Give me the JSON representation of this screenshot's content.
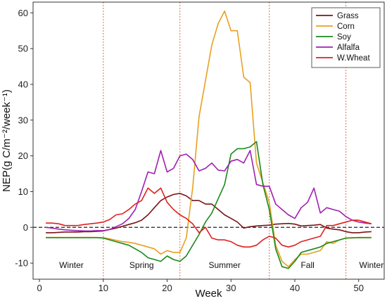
{
  "chart_data": {
    "type": "line",
    "xlabel": "Week",
    "ylabel": "NEP(g C/m⁻²/week⁻¹)",
    "xlim": [
      -1,
      54
    ],
    "ylim": [
      -14.5,
      63
    ],
    "xticks": [
      0,
      10,
      20,
      30,
      40,
      50
    ],
    "yticks": [
      -10,
      0,
      10,
      20,
      30,
      40,
      50,
      60
    ],
    "grid": false,
    "legend_position": "top-right",
    "zero_line": {
      "y": 0,
      "style": "dashed",
      "color": "#222222"
    },
    "season_dividers": {
      "x": [
        10,
        22,
        36,
        48
      ],
      "style": "dotted",
      "color": "#e8846a"
    },
    "season_labels": [
      {
        "text": "Winter",
        "x": 5
      },
      {
        "text": "Spring",
        "x": 16
      },
      {
        "text": "Summer",
        "x": 29
      },
      {
        "text": "Fall",
        "x": 42
      },
      {
        "text": "Winter",
        "x": 52
      }
    ],
    "season_label_y": -10.6,
    "x": [
      1,
      2,
      3,
      4,
      5,
      6,
      7,
      8,
      9,
      10,
      11,
      12,
      13,
      14,
      15,
      16,
      17,
      18,
      19,
      20,
      21,
      22,
      23,
      24,
      25,
      26,
      27,
      28,
      29,
      30,
      31,
      32,
      33,
      34,
      35,
      36,
      37,
      38,
      39,
      40,
      41,
      42,
      43,
      44,
      45,
      46,
      47,
      48,
      49,
      50,
      51,
      52
    ],
    "series": [
      {
        "name": "Grass",
        "color": "#7a1515",
        "values": [
          -1.5,
          -1.5,
          -1.4,
          -1.3,
          -1.3,
          -1.3,
          -1.2,
          -1.2,
          -1.1,
          -1.0,
          -0.6,
          -0.2,
          0.3,
          0.8,
          1.3,
          2.0,
          3.5,
          5.5,
          7.5,
          8.5,
          9.2,
          9.5,
          8.8,
          7.5,
          7.5,
          6.5,
          6.5,
          5.0,
          3.5,
          2.5,
          1.5,
          -0.2,
          0.2,
          0.4,
          0.5,
          0.6,
          0.9,
          1.0,
          1.1,
          0.9,
          0.4,
          0.5,
          0.6,
          0.8,
          -0.2,
          -0.5,
          -0.7,
          -1.2,
          -1.5,
          -1.5,
          -1.3,
          -1.2
        ]
      },
      {
        "name": "Corn",
        "color": "#e8a020",
        "values": [
          -2.8,
          -2.8,
          -2.8,
          -2.8,
          -2.8,
          -2.8,
          -2.8,
          -2.8,
          -2.8,
          -2.9,
          -3.2,
          -3.6,
          -4.0,
          -4.2,
          -4.5,
          -5.0,
          -5.5,
          -6.0,
          -7.5,
          -6.5,
          -7.0,
          -7.0,
          -3.0,
          11.0,
          31.0,
          41.0,
          51.0,
          57.0,
          60.5,
          55.0,
          55.0,
          42.0,
          40.5,
          18.0,
          12.5,
          7.0,
          -5.0,
          -9.5,
          -11.0,
          -9.0,
          -7.5,
          -7.5,
          -7.0,
          -6.5,
          -4.0,
          -4.5,
          -3.5,
          -3.0,
          -3.0,
          -2.8,
          -2.8,
          -2.8
        ]
      },
      {
        "name": "Soy",
        "color": "#1b8a1b",
        "values": [
          -2.9,
          -2.9,
          -2.9,
          -2.9,
          -2.9,
          -2.9,
          -2.9,
          -2.9,
          -2.9,
          -3.0,
          -3.5,
          -4.0,
          -4.5,
          -5.0,
          -6.0,
          -7.0,
          -8.5,
          -9.0,
          -9.5,
          -8.0,
          -9.0,
          -9.5,
          -8.0,
          -5.0,
          -2.0,
          1.5,
          4.0,
          8.0,
          12.0,
          20.5,
          22.0,
          22.0,
          22.5,
          24.0,
          12.0,
          5.0,
          -6.0,
          -11.0,
          -11.5,
          -9.5,
          -7.0,
          -6.5,
          -6.0,
          -5.5,
          -4.5,
          -4.0,
          -3.5,
          -3.0,
          -2.9,
          -2.9,
          -2.9,
          -2.9
        ]
      },
      {
        "name": "Alfalfa",
        "color": "#a020b0",
        "values": [
          0.0,
          -0.2,
          -0.5,
          -0.7,
          -0.8,
          -0.9,
          -1.0,
          -1.0,
          -0.9,
          -0.9,
          -0.6,
          0.2,
          1.0,
          2.5,
          5.0,
          10.0,
          15.5,
          15.0,
          21.5,
          15.5,
          16.5,
          20.0,
          20.5,
          19.0,
          15.8,
          16.5,
          18.0,
          16.0,
          15.8,
          18.5,
          19.0,
          18.0,
          21.5,
          12.0,
          11.5,
          11.5,
          6.5,
          5.0,
          3.5,
          2.5,
          5.5,
          7.0,
          11.0,
          4.0,
          5.5,
          5.0,
          4.5,
          3.0,
          2.0,
          1.5,
          1.2,
          1.0
        ]
      },
      {
        "name": "W.Wheat",
        "color": "#e02020",
        "values": [
          1.2,
          1.2,
          1.0,
          0.5,
          0.5,
          0.5,
          0.8,
          1.0,
          1.2,
          1.5,
          2.2,
          3.5,
          3.8,
          5.0,
          6.5,
          7.5,
          11.0,
          9.5,
          11.0,
          7.0,
          5.0,
          3.5,
          2.5,
          1.0,
          -1.5,
          0.0,
          -3.0,
          -3.5,
          -3.5,
          -4.0,
          -5.0,
          -5.5,
          -5.5,
          -5.0,
          -3.5,
          -2.5,
          -3.0,
          -5.0,
          -5.5,
          -5.0,
          -4.0,
          -3.5,
          -3.0,
          -2.5,
          0.5,
          0.5,
          1.0,
          1.5,
          2.0,
          2.0,
          1.5,
          1.0
        ]
      }
    ]
  }
}
